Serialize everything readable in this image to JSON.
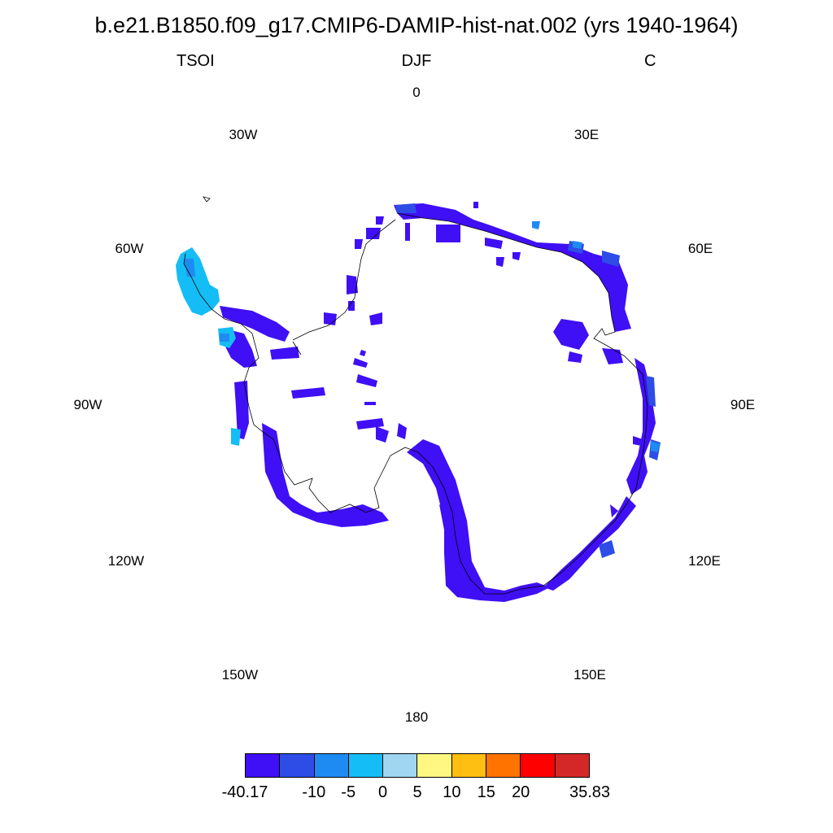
{
  "title": "b.e21.B1850.f09_g17.CMIP6-DAMIP-hist-nat.002 (yrs 1940-1964)",
  "subtitle": {
    "left": "TSOI",
    "center": "DJF",
    "right": "C"
  },
  "longitude_labels": [
    "0",
    "30E",
    "60E",
    "90E",
    "120E",
    "150E",
    "180",
    "150W",
    "120W",
    "90W",
    "60W",
    "30W"
  ],
  "colorbar": {
    "colors": [
      "#3f0ff5",
      "#2d4de6",
      "#1e8bf2",
      "#14bdf5",
      "#a0d6f0",
      "#fff782",
      "#ffbe12",
      "#ff7300",
      "#ff0000",
      "#d42828"
    ],
    "labels": [
      "-40.17",
      "-10",
      "-5",
      "0",
      "5",
      "10",
      "15",
      "20",
      "35.83"
    ]
  },
  "map_data": {
    "projection": "south polar stereographic",
    "variable": "TSOI",
    "units": "C",
    "season": "DJF",
    "dominant_value_bin": "-40.17 to -10",
    "antarctic_peninsula_value_bins": [
      "-5 to 0",
      "-10 to -5"
    ]
  }
}
